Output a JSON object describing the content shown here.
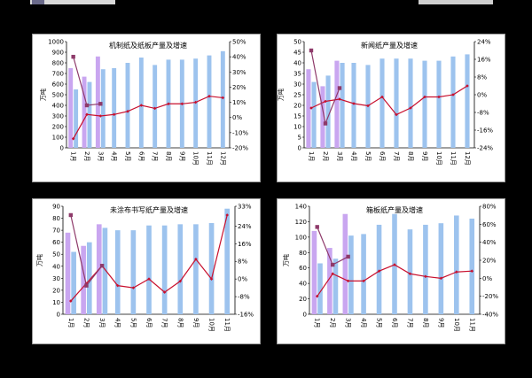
{
  "colors": {
    "bar_current": "#9dc3ee",
    "bar_prev": "#c9a6f0",
    "line_current": "#c8102e",
    "line_prev": "#8e3a6a",
    "background": "#000000"
  },
  "chart_data": [
    {
      "type": "bar",
      "title": "机制纸及纸板产量及增速",
      "ylabel": "万吨",
      "categories": [
        "1月",
        "2月",
        "3月",
        "4月",
        "5月",
        "6月",
        "7月",
        "8月",
        "9月",
        "10月",
        "11月",
        "12月"
      ],
      "ylim": [
        0,
        1000
      ],
      "yticks": [
        0,
        100,
        200,
        300,
        400,
        500,
        600,
        700,
        800,
        900,
        1000
      ],
      "y2lim": [
        -20,
        50
      ],
      "y2ticks": [
        -20,
        -10,
        0,
        10,
        20,
        30,
        40,
        50
      ],
      "series": [
        {
          "role": "bar",
          "values": [
            550,
            620,
            740,
            750,
            800,
            850,
            780,
            830,
            830,
            840,
            870,
            910
          ]
        },
        {
          "role": "bar2",
          "values": [
            750,
            670,
            860,
            null,
            null,
            null,
            null,
            null,
            null,
            null,
            null,
            null
          ]
        },
        {
          "role": "line",
          "values": [
            -14,
            2,
            1,
            2,
            4,
            8,
            6,
            9,
            9,
            10,
            14,
            13
          ]
        },
        {
          "role": "line2",
          "values": [
            40,
            8,
            9,
            null,
            null,
            null,
            null,
            null,
            null,
            null,
            null,
            null
          ]
        }
      ]
    },
    {
      "type": "bar",
      "title": "新闻纸产量及增速",
      "ylabel": "万吨",
      "categories": [
        "1月",
        "2月",
        "3月",
        "4月",
        "5月",
        "6月",
        "7月",
        "8月",
        "9月",
        "10月",
        "11月",
        "12月"
      ],
      "ylim": [
        0,
        50
      ],
      "yticks": [
        0,
        5,
        10,
        15,
        20,
        25,
        30,
        35,
        40,
        45,
        50
      ],
      "y2lim": [
        -24,
        24
      ],
      "y2ticks": [
        -24,
        -16,
        -8,
        0,
        8,
        16,
        24
      ],
      "series": [
        {
          "role": "bar",
          "values": [
            31,
            34,
            40,
            40,
            39,
            42,
            42,
            42,
            41,
            41,
            43,
            44
          ]
        },
        {
          "role": "bar2",
          "values": [
            37,
            29,
            41,
            null,
            null,
            null,
            null,
            null,
            null,
            null,
            null,
            null
          ]
        },
        {
          "role": "line",
          "values": [
            -6,
            -3,
            -2,
            -4,
            -5,
            -1,
            -9,
            -6,
            -1,
            -1,
            0,
            4
          ]
        },
        {
          "role": "line2",
          "values": [
            20,
            -13,
            3,
            null,
            null,
            null,
            null,
            null,
            null,
            null,
            null,
            null
          ]
        }
      ]
    },
    {
      "type": "bar",
      "title": "未涂布书写纸产量及增速",
      "ylabel": "万吨",
      "categories": [
        "1月",
        "2月",
        "3月",
        "4月",
        "5月",
        "6月",
        "7月",
        "8月",
        "9月",
        "10月",
        "11月"
      ],
      "ylim": [
        0,
        90
      ],
      "yticks": [
        0,
        10,
        20,
        30,
        40,
        50,
        60,
        70,
        80,
        90
      ],
      "y2lim": [
        -16,
        33
      ],
      "y2ticks": [
        -16,
        -8,
        0,
        8,
        16,
        24,
        33
      ],
      "series": [
        {
          "role": "bar",
          "values": [
            52,
            60,
            72,
            70,
            70,
            74,
            74,
            75,
            75,
            76,
            88
          ]
        },
        {
          "role": "bar2",
          "values": [
            68,
            57,
            75,
            null,
            null,
            null,
            null,
            null,
            null,
            null,
            null
          ]
        },
        {
          "role": "line",
          "values": [
            -10,
            -2,
            6,
            -3,
            -4,
            0,
            -6,
            -1,
            9,
            0,
            29
          ]
        },
        {
          "role": "line2",
          "values": [
            29,
            -3,
            6,
            null,
            null,
            null,
            null,
            null,
            null,
            null,
            null
          ]
        }
      ]
    },
    {
      "type": "bar",
      "title": "箱板纸产量及增速",
      "ylabel": "万吨",
      "categories": [
        "1月",
        "2月",
        "3月",
        "4月",
        "5月",
        "6月",
        "7月",
        "8月",
        "9月",
        "10月",
        "11月"
      ],
      "ylim": [
        0,
        140
      ],
      "yticks": [
        0,
        20,
        40,
        60,
        80,
        100,
        120,
        140
      ],
      "y2lim": [
        -40,
        80
      ],
      "y2ticks": [
        -40,
        -20,
        0,
        20,
        40,
        60,
        80
      ],
      "series": [
        {
          "role": "bar",
          "values": [
            66,
            72,
            102,
            104,
            116,
            130,
            110,
            116,
            118,
            128,
            124
          ]
        },
        {
          "role": "bar2",
          "values": [
            108,
            86,
            130,
            null,
            null,
            null,
            null,
            null,
            null,
            null,
            null
          ]
        },
        {
          "role": "line",
          "values": [
            -20,
            5,
            -3,
            -3,
            8,
            15,
            5,
            2,
            0,
            7,
            8
          ]
        },
        {
          "role": "line2",
          "values": [
            57,
            15,
            24,
            null,
            null,
            null,
            null,
            null,
            null,
            null,
            null
          ]
        }
      ]
    }
  ]
}
